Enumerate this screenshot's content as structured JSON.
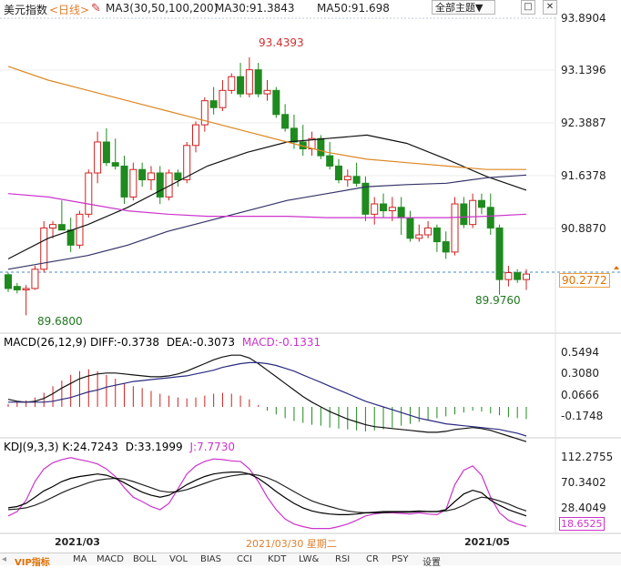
{
  "header": {
    "title": "美元指数",
    "period": "<日线>",
    "ma_group": "MA3(30,50,100,200)",
    "ma30": "MA30:91.3843",
    "ma50": "MA50:91.698",
    "theme_button": "全部主题▼",
    "btn1": "□",
    "btn2": "✕"
  },
  "price_axis": [
    "93.8904",
    "93.1396",
    "92.3887",
    "91.6378",
    "90.8870"
  ],
  "current_price": "90.2772",
  "high_label": "93.4393",
  "low_label": "89.6800",
  "recent_low_label": "89.9760",
  "macd_header": {
    "name": "MACD(26,12,9)",
    "diff": "DIFF:-0.3738",
    "dea": "DEA:-0.3073",
    "macd": "MACD:-0.1331"
  },
  "macd_axis": [
    "0.5494",
    "0.3080",
    "0.0666",
    "-0.1748"
  ],
  "kdj_header": {
    "name": "KDJ(9,3,3)",
    "k": "K:24.7243",
    "d": "D:33.1999",
    "j": "J:7.7730"
  },
  "kdj_axis": [
    "112.2755",
    "70.3402",
    "28.4049"
  ],
  "kdj_j_tag": "18.6525",
  "date_axis": {
    "left": "2021/03",
    "center": "2021/03/30 星期二",
    "right": "2021/05"
  },
  "bottom_tabs": [
    "VIP指标",
    "MA",
    "MACD",
    "BOLL",
    "VOL",
    "BIAS",
    "CCI",
    "KDT",
    "LW&",
    "RSI",
    "CR",
    "PSY",
    "设置"
  ],
  "chart_data": {
    "type": "candlestick",
    "y_range": [
      89.5,
      94.0
    ],
    "candles": [
      [
        90.27,
        90.3,
        90.02,
        90.07
      ],
      [
        90.1,
        90.15,
        90.0,
        90.05
      ],
      [
        90.05,
        90.12,
        89.68,
        90.07
      ],
      [
        90.07,
        90.4,
        90.05,
        90.35
      ],
      [
        90.35,
        91.05,
        90.3,
        90.95
      ],
      [
        90.95,
        91.05,
        90.8,
        91.0
      ],
      [
        91.0,
        91.35,
        90.95,
        90.92
      ],
      [
        90.92,
        91.1,
        90.6,
        90.7
      ],
      [
        90.7,
        91.2,
        90.65,
        91.15
      ],
      [
        91.15,
        91.8,
        91.1,
        91.75
      ],
      [
        91.75,
        92.35,
        91.6,
        92.2
      ],
      [
        92.2,
        92.4,
        91.85,
        91.9
      ],
      [
        91.9,
        92.25,
        91.8,
        91.85
      ],
      [
        91.85,
        92.0,
        91.3,
        91.4
      ],
      [
        91.4,
        91.9,
        91.35,
        91.8
      ],
      [
        91.8,
        91.9,
        91.55,
        91.65
      ],
      [
        91.65,
        91.85,
        91.5,
        91.75
      ],
      [
        91.75,
        91.85,
        91.3,
        91.4
      ],
      [
        91.4,
        91.8,
        91.35,
        91.75
      ],
      [
        91.75,
        91.8,
        91.55,
        91.65
      ],
      [
        91.65,
        92.2,
        91.6,
        92.15
      ],
      [
        92.15,
        92.5,
        92.05,
        92.45
      ],
      [
        92.45,
        92.85,
        92.35,
        92.8
      ],
      [
        92.8,
        93.0,
        92.6,
        92.7
      ],
      [
        92.7,
        93.1,
        92.65,
        92.95
      ],
      [
        92.95,
        93.2,
        92.9,
        93.15
      ],
      [
        93.15,
        93.35,
        92.85,
        92.9
      ],
      [
        92.9,
        93.43,
        92.85,
        93.25
      ],
      [
        93.25,
        93.35,
        92.85,
        92.9
      ],
      [
        92.9,
        93.1,
        92.8,
        92.95
      ],
      [
        92.95,
        93.0,
        92.55,
        92.6
      ],
      [
        92.6,
        92.75,
        92.35,
        92.4
      ],
      [
        92.4,
        92.6,
        92.1,
        92.2
      ],
      [
        92.2,
        92.45,
        92.0,
        92.1
      ],
      [
        92.1,
        92.35,
        92.0,
        92.25
      ],
      [
        92.25,
        92.3,
        91.95,
        92.0
      ],
      [
        92.0,
        92.2,
        91.8,
        91.85
      ],
      [
        91.85,
        91.95,
        91.6,
        91.65
      ],
      [
        91.65,
        91.8,
        91.55,
        91.7
      ],
      [
        91.7,
        91.9,
        91.55,
        91.6
      ],
      [
        91.6,
        91.7,
        91.05,
        91.15
      ],
      [
        91.15,
        91.4,
        91.0,
        91.3
      ],
      [
        91.3,
        91.45,
        91.1,
        91.2
      ],
      [
        91.2,
        91.4,
        91.05,
        91.25
      ],
      [
        91.25,
        91.4,
        90.85,
        91.1
      ],
      [
        91.1,
        91.2,
        90.75,
        90.8
      ],
      [
        90.8,
        91.0,
        90.75,
        90.85
      ],
      [
        90.85,
        91.05,
        90.8,
        90.95
      ],
      [
        90.95,
        91.0,
        90.6,
        90.75
      ],
      [
        90.75,
        90.9,
        90.5,
        90.6
      ],
      [
        90.6,
        91.4,
        90.55,
        91.3
      ],
      [
        91.3,
        91.4,
        90.95,
        91.0
      ],
      [
        91.0,
        91.45,
        90.95,
        91.35
      ],
      [
        91.35,
        91.45,
        91.15,
        91.25
      ],
      [
        91.25,
        91.45,
        90.85,
        90.95
      ],
      [
        90.95,
        91.0,
        89.98,
        90.2
      ],
      [
        90.2,
        90.4,
        90.1,
        90.3
      ],
      [
        90.3,
        90.35,
        90.15,
        90.2
      ],
      [
        90.2,
        90.35,
        90.05,
        90.28
      ]
    ],
    "ma_lines": [
      {
        "name": "MA30",
        "color": "#111111",
        "values": [
          90.5,
          90.8,
          91.0,
          91.25,
          91.55,
          91.85,
          92.05,
          92.2,
          92.25,
          92.3,
          92.18,
          91.95,
          91.7,
          91.5
        ]
      },
      {
        "name": "MA50",
        "color": "#333366",
        "values": [
          90.35,
          90.45,
          90.55,
          90.7,
          90.9,
          91.05,
          91.2,
          91.35,
          91.45,
          91.55,
          91.58,
          91.6,
          91.68,
          91.72
        ]
      },
      {
        "name": "MA100",
        "color": "#cc33cc",
        "values": [
          91.45,
          91.4,
          91.3,
          91.2,
          91.15,
          91.12,
          91.12,
          91.12,
          91.1,
          91.1,
          91.1,
          91.1,
          91.12,
          91.15
        ]
      },
      {
        "name": "MA200",
        "color": "#dd8822",
        "values": [
          93.3,
          93.1,
          92.95,
          92.8,
          92.65,
          92.5,
          92.35,
          92.2,
          92.05,
          91.95,
          91.9,
          91.85,
          91.8,
          91.8
        ]
      }
    ],
    "macd": {
      "y_range": [
        -0.3,
        0.6
      ],
      "hist": [
        0.03,
        0.05,
        0.07,
        0.1,
        0.15,
        0.22,
        0.28,
        0.34,
        0.38,
        0.4,
        0.38,
        0.34,
        0.3,
        0.25,
        0.22,
        0.2,
        0.17,
        0.14,
        0.12,
        0.1,
        0.09,
        0.1,
        0.12,
        0.14,
        0.15,
        0.14,
        0.12,
        0.08,
        0.02,
        -0.04,
        -0.08,
        -0.12,
        -0.15,
        -0.17,
        -0.19,
        -0.2,
        -0.22,
        -0.23,
        -0.24,
        -0.25,
        -0.26,
        -0.25,
        -0.24,
        -0.22,
        -0.2,
        -0.18,
        -0.16,
        -0.14,
        -0.12,
        -0.1,
        -0.08,
        -0.06,
        -0.04,
        -0.05,
        -0.07,
        -0.09,
        -0.11,
        -0.12,
        -0.13
      ],
      "diff": [
        0.08,
        0.06,
        0.05,
        0.06,
        0.09,
        0.14,
        0.2,
        0.25,
        0.3,
        0.33,
        0.35,
        0.36,
        0.36,
        0.35,
        0.34,
        0.33,
        0.32,
        0.32,
        0.33,
        0.35,
        0.38,
        0.42,
        0.46,
        0.5,
        0.53,
        0.55,
        0.55,
        0.52,
        0.46,
        0.39,
        0.32,
        0.25,
        0.18,
        0.11,
        0.05,
        0.0,
        -0.05,
        -0.09,
        -0.13,
        -0.16,
        -0.19,
        -0.21,
        -0.22,
        -0.23,
        -0.24,
        -0.25,
        -0.26,
        -0.27,
        -0.27,
        -0.26,
        -0.24,
        -0.23,
        -0.22,
        -0.23,
        -0.25,
        -0.28,
        -0.31,
        -0.34,
        -0.37
      ],
      "dea": [
        0.05,
        0.05,
        0.05,
        0.05,
        0.05,
        0.06,
        0.08,
        0.1,
        0.13,
        0.16,
        0.18,
        0.21,
        0.23,
        0.25,
        0.27,
        0.28,
        0.29,
        0.3,
        0.31,
        0.32,
        0.33,
        0.35,
        0.37,
        0.39,
        0.42,
        0.44,
        0.46,
        0.47,
        0.47,
        0.46,
        0.44,
        0.41,
        0.38,
        0.34,
        0.3,
        0.26,
        0.22,
        0.18,
        0.14,
        0.1,
        0.06,
        0.03,
        0.0,
        -0.03,
        -0.06,
        -0.09,
        -0.12,
        -0.14,
        -0.16,
        -0.18,
        -0.19,
        -0.2,
        -0.21,
        -0.22,
        -0.23,
        -0.24,
        -0.26,
        -0.28,
        -0.31
      ]
    },
    "kdj": {
      "y_range": [
        0,
        125
      ],
      "k": [
        38,
        40,
        45,
        55,
        65,
        72,
        80,
        85,
        88,
        90,
        92,
        90,
        85,
        78,
        70,
        63,
        58,
        55,
        58,
        66,
        75,
        82,
        88,
        92,
        94,
        95,
        95,
        92,
        85,
        75,
        64,
        54,
        45,
        38,
        33,
        30,
        28,
        27,
        27,
        28,
        30,
        31,
        32,
        32,
        32,
        32,
        33,
        32,
        32,
        35,
        48,
        60,
        66,
        62,
        50,
        42,
        35,
        30,
        25
      ],
      "d": [
        35,
        36,
        38,
        42,
        48,
        55,
        62,
        68,
        73,
        78,
        82,
        84,
        85,
        84,
        80,
        75,
        70,
        65,
        63,
        64,
        67,
        72,
        77,
        82,
        86,
        89,
        91,
        92,
        90,
        86,
        80,
        72,
        64,
        56,
        49,
        44,
        40,
        36,
        33,
        31,
        30,
        30,
        30,
        31,
        31,
        31,
        32,
        32,
        32,
        33,
        36,
        42,
        50,
        55,
        53,
        49,
        44,
        38,
        33
      ],
      "j": [
        25,
        32,
        50,
        80,
        100,
        110,
        115,
        118,
        115,
        112,
        108,
        100,
        88,
        70,
        55,
        48,
        40,
        35,
        45,
        68,
        92,
        105,
        112,
        116,
        115,
        113,
        112,
        100,
        80,
        55,
        35,
        20,
        12,
        8,
        5,
        5,
        5,
        8,
        12,
        18,
        25,
        28,
        30,
        30,
        29,
        28,
        30,
        28,
        27,
        35,
        75,
        98,
        105,
        90,
        55,
        30,
        18,
        12,
        8
      ]
    }
  }
}
